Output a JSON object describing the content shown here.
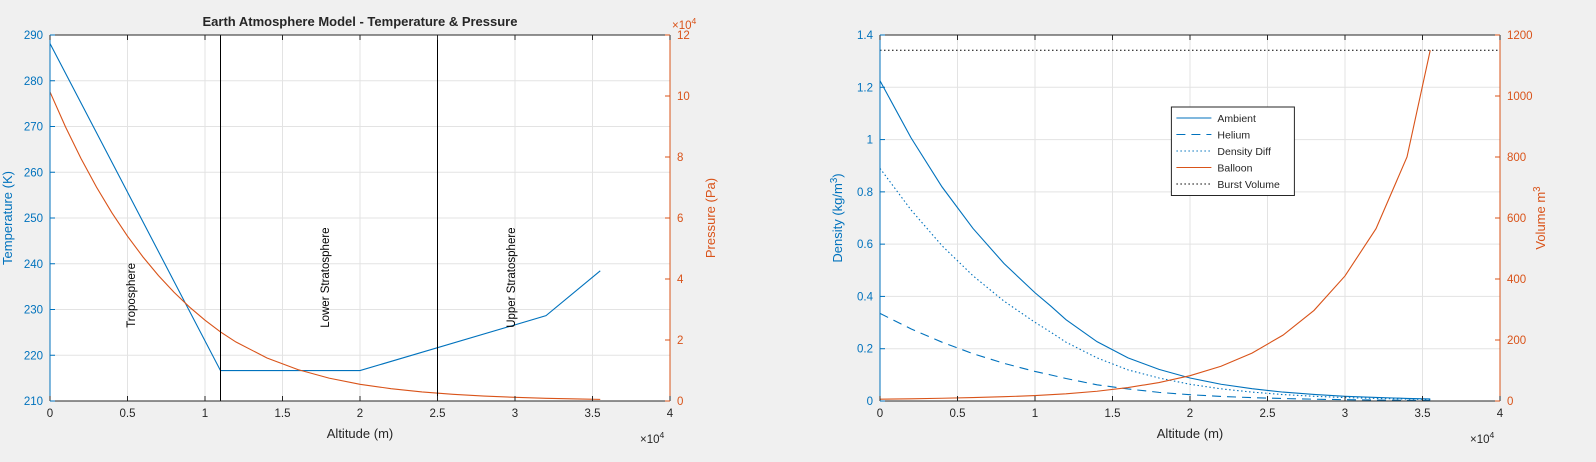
{
  "colors": {
    "background": "#f0f0f0",
    "axes": "#ffffff",
    "grid": "#e3e3e3",
    "axis_line": "#262626",
    "left_axis": "#0072bd",
    "right_axis": "#d95319",
    "blue": "#0072bd",
    "orange": "#d95319",
    "black": "#000000"
  },
  "chart_data": [
    {
      "type": "line",
      "title": "Earth Atmosphere Model - Temperature & Pressure",
      "xlabel": "Altitude (m)",
      "x_exponent": "×10^4",
      "xlim": [
        0,
        40000
      ],
      "x_ticks": [
        0,
        5000,
        10000,
        15000,
        20000,
        25000,
        30000,
        35000,
        40000
      ],
      "x_tick_labels": [
        "0",
        "0.5",
        "1",
        "1.5",
        "2",
        "2.5",
        "3",
        "3.5",
        "4"
      ],
      "ylabel_left": "Temperature (K)",
      "ylim_left": [
        210,
        290
      ],
      "y_ticks_left": [
        210,
        220,
        230,
        240,
        250,
        260,
        270,
        280,
        290
      ],
      "ylabel_right": "Pressure (Pa)",
      "y_exponent_right": "×10^4",
      "ylim_right": [
        0,
        120000
      ],
      "y_ticks_right": [
        0,
        20000,
        40000,
        60000,
        80000,
        100000,
        120000
      ],
      "y_tick_labels_right": [
        "0",
        "2",
        "4",
        "6",
        "8",
        "10",
        "12"
      ],
      "grid": true,
      "series": [
        {
          "axis": "left",
          "color": "#0072bd",
          "style": "solid",
          "x": [
            0,
            11000,
            20000,
            32000,
            35500
          ],
          "y": [
            288.15,
            216.65,
            216.65,
            228.65,
            238.45
          ]
        },
        {
          "axis": "right",
          "color": "#d95319",
          "style": "solid",
          "x": [
            0,
            1000,
            2000,
            3000,
            4000,
            5000,
            6000,
            7000,
            8000,
            9000,
            10000,
            11000,
            12000,
            14000,
            16000,
            18000,
            20000,
            22000,
            24000,
            26000,
            28000,
            30000,
            32000,
            34000,
            35500
          ],
          "y": [
            101325,
            89876,
            79501,
            70121,
            61660,
            54048,
            47217,
            41105,
            35651,
            30800,
            26500,
            22632,
            19330,
            14102,
            10287,
            7505,
            5475,
            4047,
            2972,
            2188,
            1616,
            1197,
            889,
            663,
            533
          ]
        },
        {
          "axis": "left",
          "color": "#000000",
          "style": "solid",
          "vertical_line_at": 11000
        },
        {
          "axis": "left",
          "color": "#000000",
          "style": "solid",
          "vertical_line_at": 25000
        }
      ],
      "annotations": [
        {
          "text": "Troposphere",
          "x": 5500,
          "y": 226,
          "rotation": -90
        },
        {
          "text": "Lower Stratosphere",
          "x": 18000,
          "y": 226,
          "rotation": -90
        },
        {
          "text": "Upper Stratosphere",
          "x": 30000,
          "y": 226,
          "rotation": -90
        }
      ]
    },
    {
      "type": "line",
      "title": "",
      "xlabel": "Altitude (m)",
      "x_exponent": "×10^4",
      "xlim": [
        0,
        40000
      ],
      "x_ticks": [
        0,
        5000,
        10000,
        15000,
        20000,
        25000,
        30000,
        35000,
        40000
      ],
      "x_tick_labels": [
        "0",
        "0.5",
        "1",
        "1.5",
        "2",
        "2.5",
        "3",
        "3.5",
        "4"
      ],
      "ylabel_left": "Density (kg/m^3)",
      "ylim_left": [
        0,
        1.4
      ],
      "y_ticks_left": [
        0,
        0.2,
        0.4,
        0.6,
        0.8,
        1,
        1.2,
        1.4
      ],
      "y_tick_labels_left": [
        "0",
        "0.2",
        "0.4",
        "0.6",
        "0.8",
        "1",
        "1.2",
        "1.4"
      ],
      "ylabel_right": "Volume m^3",
      "ylim_right": [
        0,
        1200
      ],
      "y_ticks_right": [
        0,
        200,
        400,
        600,
        800,
        1000,
        1200
      ],
      "grid": true,
      "legend": "inside-upper-center",
      "series": [
        {
          "name": "Ambient",
          "axis": "left",
          "color": "#0072bd",
          "style": "solid",
          "x": [
            0,
            2000,
            4000,
            6000,
            8000,
            10000,
            11000,
            12000,
            14000,
            16000,
            18000,
            20000,
            22000,
            24000,
            26000,
            28000,
            30000,
            32000,
            34000,
            35500
          ],
          "y": [
            1.225,
            1.007,
            0.819,
            0.66,
            0.526,
            0.414,
            0.364,
            0.311,
            0.227,
            0.165,
            0.121,
            0.088,
            0.064,
            0.047,
            0.034,
            0.025,
            0.018,
            0.0136,
            0.01,
            0.0078
          ]
        },
        {
          "name": "Helium",
          "axis": "left",
          "color": "#0072bd",
          "style": "dashed",
          "x": [
            0,
            2000,
            4000,
            6000,
            8000,
            10000,
            11000,
            12000,
            14000,
            16000,
            18000,
            20000,
            22000,
            24000,
            26000,
            28000,
            30000,
            32000,
            34000,
            35500
          ],
          "y": [
            0.335,
            0.276,
            0.225,
            0.181,
            0.144,
            0.113,
            0.1,
            0.086,
            0.062,
            0.046,
            0.033,
            0.024,
            0.0175,
            0.0129,
            0.0094,
            0.0069,
            0.005,
            0.0037,
            0.0027,
            0.0021
          ]
        },
        {
          "name": "Density Diff",
          "axis": "left",
          "color": "#0072bd",
          "style": "dotted",
          "x": [
            0,
            2000,
            4000,
            6000,
            8000,
            10000,
            11000,
            12000,
            14000,
            16000,
            18000,
            20000,
            22000,
            24000,
            26000,
            28000,
            30000,
            32000,
            34000,
            35500
          ],
          "y": [
            0.89,
            0.731,
            0.594,
            0.479,
            0.382,
            0.301,
            0.264,
            0.225,
            0.165,
            0.119,
            0.088,
            0.064,
            0.0465,
            0.0341,
            0.0246,
            0.0181,
            0.013,
            0.0099,
            0.0073,
            0.0057
          ]
        },
        {
          "name": "Balloon",
          "axis": "right",
          "color": "#d95319",
          "style": "solid",
          "x": [
            0,
            2000,
            4000,
            6000,
            8000,
            10000,
            12000,
            14000,
            16000,
            18000,
            20000,
            22000,
            24000,
            26000,
            28000,
            30000,
            32000,
            34000,
            35500
          ],
          "y": [
            6,
            7.3,
            9,
            11.1,
            14,
            17.8,
            23.5,
            32,
            44,
            60.5,
            83,
            114,
            157,
            216,
            297,
            410,
            565,
            800,
            1150
          ]
        },
        {
          "name": "Burst Volume",
          "axis": "right",
          "color": "#000000",
          "style": "dotted",
          "x": [
            0,
            40000
          ],
          "y": [
            1150,
            1150
          ]
        }
      ]
    }
  ]
}
